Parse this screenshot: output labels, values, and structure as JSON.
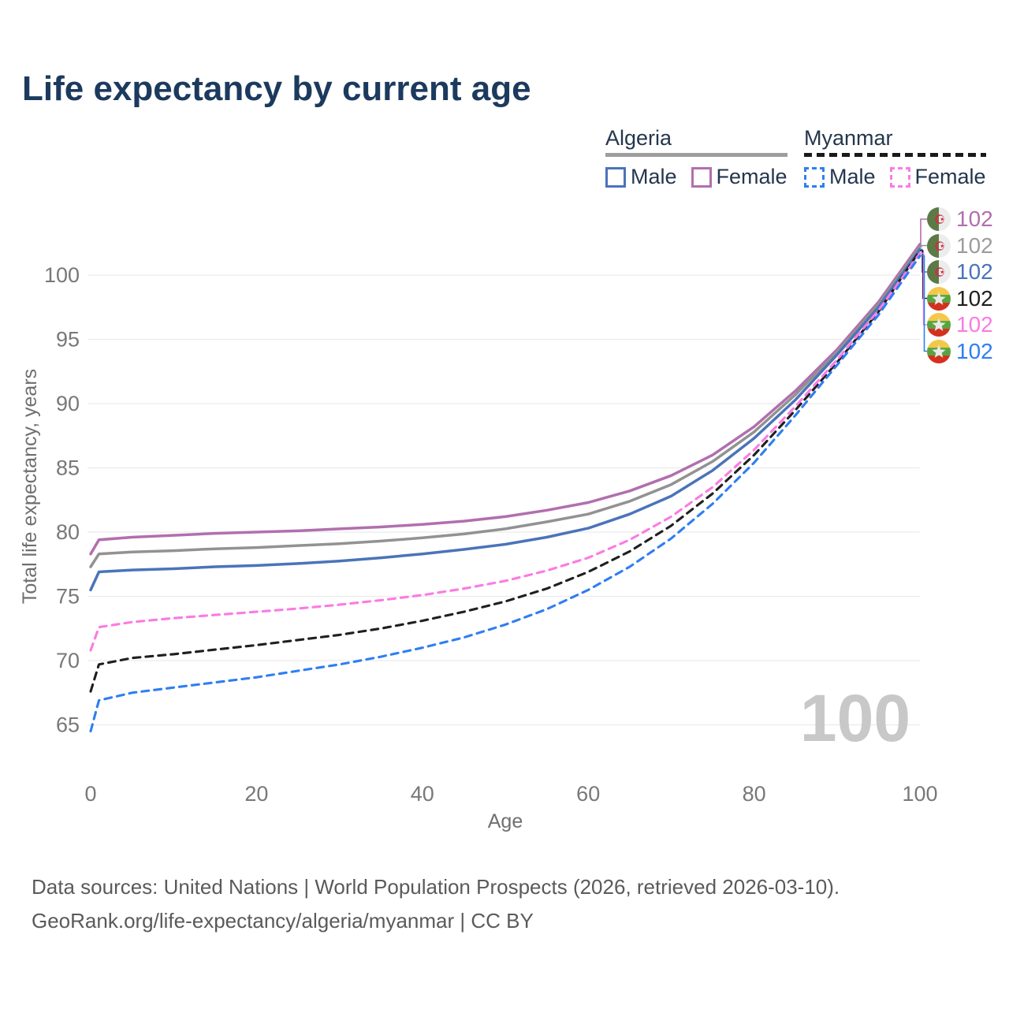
{
  "title": "Life expectancy by current age",
  "watermark_age": "100",
  "legend": {
    "groups": [
      {
        "name": "Algeria",
        "line_style": "solid",
        "underline_color": "#9e9e9e",
        "items": [
          {
            "label": "Male",
            "color": "#4a74b9"
          },
          {
            "label": "Female",
            "color": "#b16fae"
          }
        ]
      },
      {
        "name": "Myanmar",
        "line_style": "dashed",
        "underline_color": "#1a1a1a",
        "items": [
          {
            "label": "Male",
            "color": "#2e7ef2"
          },
          {
            "label": "Female",
            "color": "#fb7be2"
          }
        ]
      }
    ]
  },
  "end_labels": [
    {
      "value": "102",
      "flag": "algeria",
      "color": "#b16fae",
      "series": "Algeria Female"
    },
    {
      "value": "102",
      "flag": "algeria",
      "color": "#9c9c9c",
      "series": "Algeria Both sexes"
    },
    {
      "value": "102",
      "flag": "algeria",
      "color": "#4a74b9",
      "series": "Algeria Male"
    },
    {
      "value": "102",
      "flag": "myanmar",
      "color": "#1f1f1f",
      "series": "Myanmar Both sexes"
    },
    {
      "value": "102",
      "flag": "myanmar",
      "color": "#fb7be2",
      "series": "Myanmar Female"
    },
    {
      "value": "102",
      "flag": "myanmar",
      "color": "#2e7ef2",
      "series": "Myanmar Male"
    }
  ],
  "footer": {
    "line1": "Data sources: United Nations | World Population Prospects (2026, retrieved 2026-03-10).",
    "line2": "GeoRank.org/life-expectancy/algeria/myanmar | CC BY"
  },
  "chart_data": {
    "type": "line",
    "title": "Life expectancy by current age",
    "xlabel": "Age",
    "ylabel": "Total life expectancy, years",
    "xlim": [
      0,
      100
    ],
    "ylim": [
      63.5,
      103.5
    ],
    "x_ticks": [
      0,
      20,
      40,
      60,
      80,
      100
    ],
    "y_ticks": [
      65,
      70,
      75,
      80,
      85,
      90,
      95,
      100
    ],
    "grid": "horizontal",
    "legend_position": "top-right",
    "x": [
      0,
      1,
      5,
      10,
      15,
      20,
      25,
      30,
      35,
      40,
      45,
      50,
      55,
      60,
      65,
      70,
      75,
      80,
      85,
      90,
      95,
      100
    ],
    "series": [
      {
        "id": "algeria-female",
        "name": "Algeria Female",
        "country": "Algeria",
        "sex": "Female",
        "color": "#b16fae",
        "dash": false,
        "values": [
          78.3,
          79.4,
          79.6,
          79.75,
          79.9,
          80.0,
          80.1,
          80.25,
          80.4,
          80.6,
          80.85,
          81.2,
          81.7,
          82.3,
          83.2,
          84.4,
          86.0,
          88.2,
          91.0,
          94.2,
          97.9,
          102.4
        ]
      },
      {
        "id": "algeria-both",
        "name": "Algeria Both sexes",
        "country": "Algeria",
        "sex": "Both",
        "color": "#929292",
        "dash": false,
        "values": [
          77.3,
          78.3,
          78.45,
          78.55,
          78.7,
          78.8,
          78.95,
          79.1,
          79.3,
          79.55,
          79.85,
          80.25,
          80.8,
          81.4,
          82.4,
          83.7,
          85.5,
          87.8,
          90.7,
          94.0,
          97.7,
          102.2
        ]
      },
      {
        "id": "algeria-male",
        "name": "Algeria Male",
        "country": "Algeria",
        "sex": "Male",
        "color": "#4a74b9",
        "dash": false,
        "values": [
          75.5,
          76.9,
          77.05,
          77.15,
          77.3,
          77.4,
          77.55,
          77.75,
          78.0,
          78.3,
          78.65,
          79.05,
          79.6,
          80.3,
          81.4,
          82.8,
          84.8,
          87.3,
          90.3,
          93.8,
          97.5,
          102.0
        ]
      },
      {
        "id": "myanmar-both",
        "name": "Myanmar Both sexes",
        "country": "Myanmar",
        "sex": "Both",
        "color": "#1f1f1f",
        "dash": true,
        "values": [
          67.6,
          69.7,
          70.2,
          70.5,
          70.85,
          71.2,
          71.6,
          72.0,
          72.5,
          73.1,
          73.8,
          74.6,
          75.6,
          76.9,
          78.5,
          80.5,
          83.0,
          86.0,
          89.5,
          93.2,
          97.15,
          101.9
        ]
      },
      {
        "id": "myanmar-female",
        "name": "Myanmar Female",
        "country": "Myanmar",
        "sex": "Female",
        "color": "#fb7be2",
        "dash": true,
        "values": [
          70.8,
          72.6,
          73.0,
          73.3,
          73.55,
          73.8,
          74.05,
          74.35,
          74.7,
          75.1,
          75.6,
          76.2,
          77.0,
          78.0,
          79.4,
          81.2,
          83.5,
          86.4,
          89.8,
          93.4,
          97.25,
          101.7
        ]
      },
      {
        "id": "myanmar-male",
        "name": "Myanmar Male",
        "country": "Myanmar",
        "sex": "Male",
        "color": "#2e7ef2",
        "dash": true,
        "values": [
          64.5,
          66.9,
          67.5,
          67.9,
          68.3,
          68.7,
          69.2,
          69.7,
          70.3,
          71.0,
          71.8,
          72.8,
          74.0,
          75.5,
          77.3,
          79.5,
          82.2,
          85.4,
          89.1,
          93.0,
          96.9,
          101.5
        ]
      }
    ]
  }
}
